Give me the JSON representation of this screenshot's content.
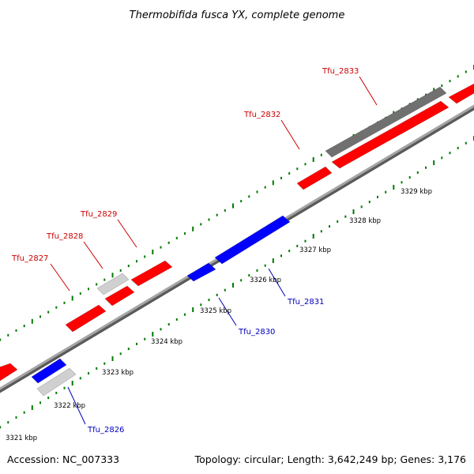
{
  "title": "Thermobifida fusca YX, complete genome",
  "footer": {
    "accession": "Accession: NC_007333",
    "summary": "Topology: circular; Length: 3,642,249 bp; Genes: 3,176"
  },
  "colors": {
    "forward": "#ff0000",
    "reverse": "#0000ff",
    "grey_light": "#d0d0d0",
    "grey_dark": "#707070",
    "backbone": "#8a8a8a",
    "ticks": "#007a00",
    "label_forward": "#cc0000",
    "label_reverse": "#0000bb"
  },
  "ruler_labels": [
    "3321 kbp",
    "3322 kbp",
    "3323 kbp",
    "3324 kbp",
    "3325 kbp",
    "3326 kbp",
    "3327 kbp",
    "3328 kbp",
    "3329 kbp"
  ],
  "gene_labels": [
    {
      "text": "Tfu_2826",
      "strand": "reverse"
    },
    {
      "text": "Tfu_2827",
      "strand": "forward"
    },
    {
      "text": "Tfu_2828",
      "strand": "forward"
    },
    {
      "text": "Tfu_2829",
      "strand": "forward"
    },
    {
      "text": "Tfu_2830",
      "strand": "reverse"
    },
    {
      "text": "Tfu_2831",
      "strand": "reverse"
    },
    {
      "text": "Tfu_2832",
      "strand": "forward"
    },
    {
      "text": "Tfu_2833",
      "strand": "forward"
    }
  ]
}
